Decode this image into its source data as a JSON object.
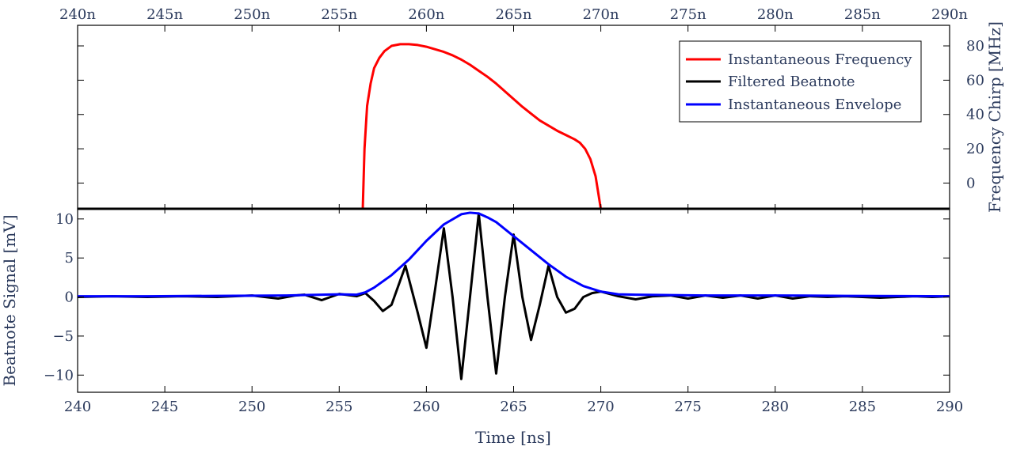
{
  "chart_data": {
    "type": "line",
    "x_top_tick_labels": [
      "240n",
      "245n",
      "250n",
      "255n",
      "260n",
      "265n",
      "270n",
      "275n",
      "280n",
      "285n",
      "290n"
    ],
    "x_bottom_tick_labels": [
      "240",
      "245",
      "250",
      "255",
      "260",
      "265",
      "270",
      "275",
      "280",
      "285",
      "290"
    ],
    "x_ticks": [
      240,
      245,
      250,
      255,
      260,
      265,
      270,
      275,
      280,
      285,
      290
    ],
    "xlim": [
      240,
      290
    ],
    "xlabel": "Time [ns]",
    "top_panel": {
      "ylabel": "Frequency Chirp [MHz]",
      "ylim": [
        -15,
        92
      ],
      "y_ticks": [
        0,
        20,
        40,
        60,
        80
      ],
      "y_tick_labels": [
        "0",
        "20",
        "40",
        "60",
        "80"
      ],
      "series": [
        {
          "name": "Instantaneous Frequency",
          "color": "#ff0000",
          "x": [
            256.35,
            256.45,
            256.6,
            256.8,
            257.0,
            257.3,
            257.6,
            258.0,
            258.5,
            259.0,
            259.5,
            260.0,
            260.5,
            261.0,
            261.5,
            262.0,
            262.5,
            263.0,
            263.5,
            264.0,
            264.5,
            265.0,
            265.5,
            266.0,
            266.5,
            267.0,
            267.5,
            268.0,
            268.5,
            268.8,
            269.1,
            269.4,
            269.7,
            270.0
          ],
          "values": [
            -15,
            20,
            45,
            58,
            67,
            73,
            77,
            80,
            81,
            81,
            80.5,
            79.5,
            78,
            76.5,
            74.5,
            72,
            69,
            65.5,
            62,
            58,
            53.5,
            49,
            44.5,
            40.5,
            36.5,
            33.5,
            30.5,
            28,
            25.5,
            23.5,
            20,
            14,
            4,
            -15
          ]
        }
      ]
    },
    "bottom_panel": {
      "ylabel": "Beatnote Signal [mV]",
      "ylim": [
        -12.2,
        11.3
      ],
      "y_ticks": [
        -10,
        -5,
        0,
        5,
        10
      ],
      "y_tick_labels": [
        "−10",
        "−5",
        "0",
        "5",
        "10"
      ],
      "series": [
        {
          "name": "Filtered Beatnote",
          "color": "#000000",
          "x": [
            240,
            242,
            244,
            246,
            248,
            250,
            251.5,
            252.5,
            253,
            254,
            255,
            256,
            256.5,
            257,
            257.5,
            258,
            258.8,
            259.5,
            260,
            260.5,
            261,
            261.5,
            262,
            262.5,
            263,
            263.5,
            264,
            264.5,
            265,
            265.5,
            266,
            266.5,
            267,
            267.5,
            268,
            268.5,
            269,
            269.5,
            270,
            271,
            272,
            273,
            274,
            275,
            276,
            277,
            278,
            279,
            280,
            281,
            282,
            283,
            284,
            285,
            286,
            287,
            288,
            289,
            290
          ],
          "values": [
            0,
            0.1,
            0,
            0.1,
            0,
            0.2,
            -0.2,
            0.2,
            0.3,
            -0.4,
            0.4,
            0.1,
            0.5,
            -0.5,
            -1.8,
            -1,
            4,
            -2,
            -6.5,
            1,
            8.8,
            0,
            -10.5,
            0,
            10.7,
            0,
            -9.8,
            0,
            8,
            0,
            -5.5,
            -1,
            4,
            0,
            -2,
            -1.5,
            0,
            0.5,
            0.7,
            0.1,
            -0.3,
            0.1,
            0.2,
            -0.2,
            0.2,
            -0.1,
            0.2,
            -0.2,
            0.2,
            -0.2,
            0.1,
            0,
            0.1,
            0,
            -0.1,
            0,
            0.1,
            0,
            0.1
          ]
        },
        {
          "name": "Instantaneous Envelope",
          "color": "#0000ff",
          "x": [
            240,
            244,
            248,
            252,
            254,
            255,
            256,
            256.5,
            257,
            258,
            259,
            260,
            261,
            262,
            262.5,
            263,
            263.5,
            264,
            265,
            266,
            267,
            268,
            269,
            270,
            271,
            272,
            274,
            276,
            278,
            280,
            284,
            290
          ],
          "values": [
            0.1,
            0.1,
            0.15,
            0.2,
            0.3,
            0.35,
            0.3,
            0.6,
            1.2,
            2.8,
            4.8,
            7.2,
            9.3,
            10.6,
            10.8,
            10.7,
            10.2,
            9.6,
            7.8,
            6,
            4.2,
            2.6,
            1.4,
            0.7,
            0.35,
            0.3,
            0.25,
            0.2,
            0.2,
            0.2,
            0.15,
            0.1
          ]
        }
      ]
    },
    "legend_position": "top-right",
    "grid": false
  }
}
